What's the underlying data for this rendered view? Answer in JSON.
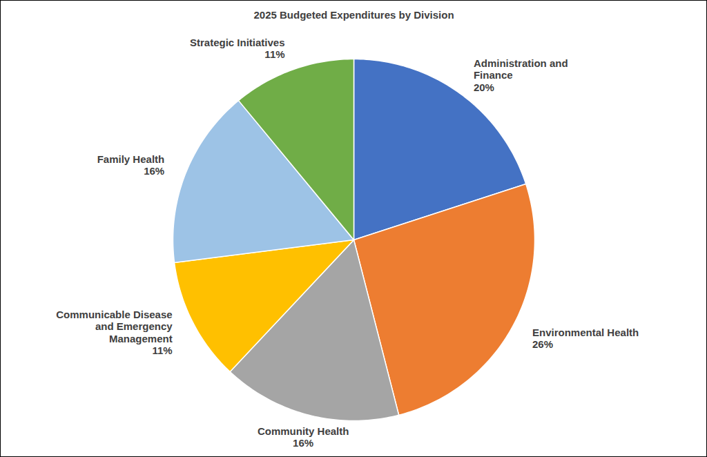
{
  "chart_data": {
    "type": "pie",
    "title": "2025 Budgeted Expenditures by Division",
    "categories": [
      "Administration and Finance",
      "Environmental Health",
      "Community Health",
      "Communicable Disease and Emergency Management",
      "Family Health",
      "Strategic Initiatives"
    ],
    "values": [
      20,
      26,
      16,
      11,
      16,
      11
    ],
    "value_labels": [
      "20%",
      "26%",
      "16%",
      "11%",
      "16%",
      "11%"
    ],
    "colors": [
      "#4472c4",
      "#ed7d31",
      "#a5a5a5",
      "#ffc000",
      "#9dc3e6",
      "#70ad47"
    ],
    "data_labels": true
  }
}
